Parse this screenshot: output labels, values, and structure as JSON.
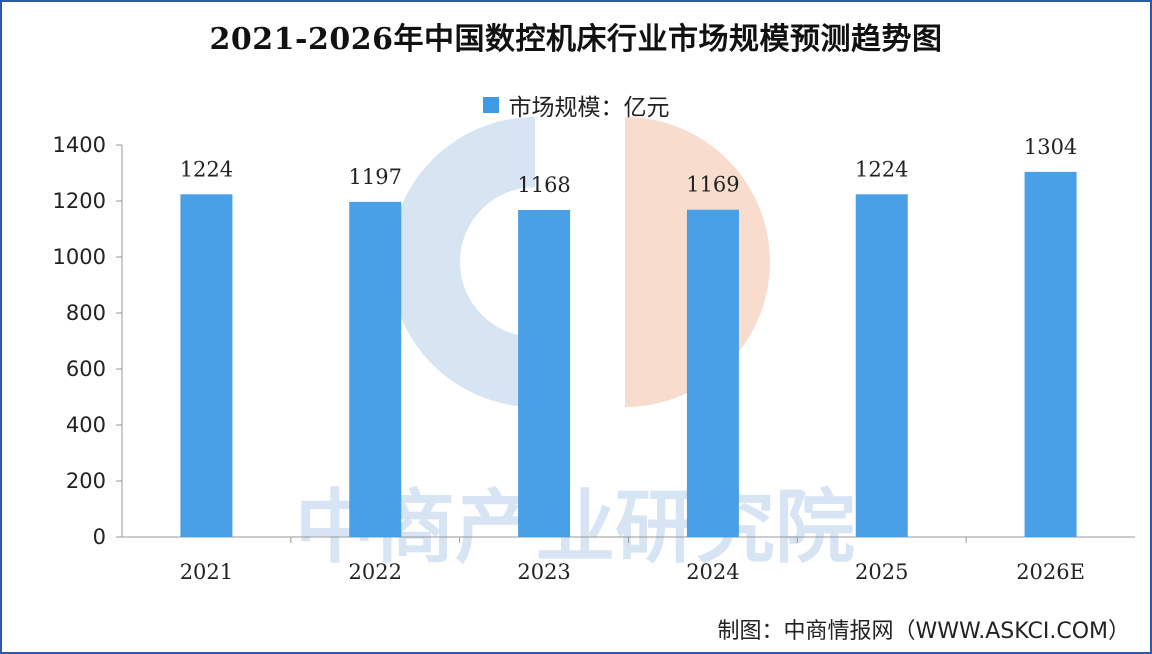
{
  "chart_data": {
    "type": "bar",
    "title": "2021-2026年中国数控机床行业市场规模预测趋势图",
    "categories": [
      "2021",
      "2022",
      "2023",
      "2024",
      "2025",
      "2026E"
    ],
    "series": [
      {
        "name": "市场规模：亿元",
        "values": [
          1224,
          1197,
          1168,
          1169,
          1224,
          1304
        ]
      }
    ],
    "ylim": [
      0,
      1400
    ],
    "yticks": [
      "0",
      "200",
      "400",
      "600",
      "800",
      "1000",
      "1200",
      "1400"
    ],
    "data_labels": [
      "1224",
      "1197",
      "1168",
      "1169",
      "1224",
      "1304"
    ],
    "bar_color": "#3f9be6",
    "grid": false,
    "legend_position": "top-center"
  },
  "watermark": {
    "text": "中商产业研究院",
    "colors": [
      "#c9dcef",
      "#f6d2bf"
    ]
  },
  "source": "制图：中商情报网（WWW.ASKCI.COM）"
}
